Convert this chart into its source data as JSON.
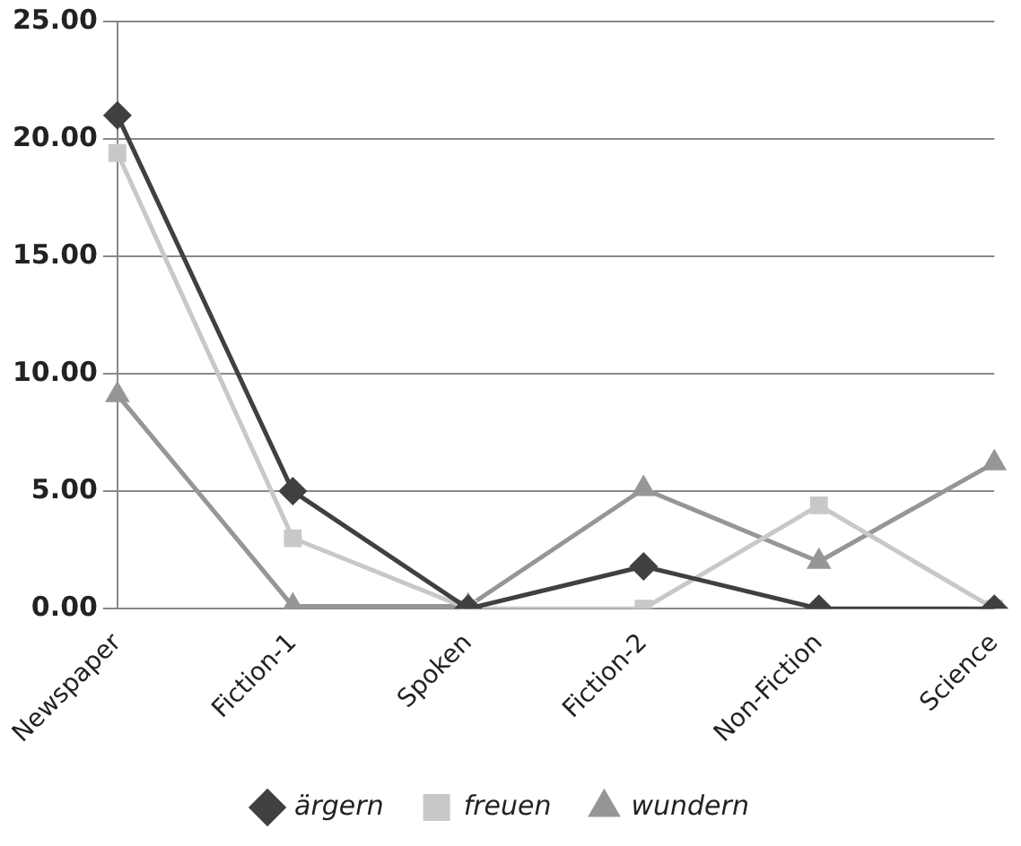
{
  "chart_data": {
    "type": "line",
    "categories": [
      "Newspaper",
      "Fiction-1",
      "Spoken",
      "Fiction-2",
      "Non-Fiction",
      "Science"
    ],
    "series": [
      {
        "name": "ärgern",
        "color": "#404040",
        "marker": "diamond",
        "values": [
          21.0,
          5.0,
          0,
          1.8,
          0,
          0
        ]
      },
      {
        "name": "freuen",
        "color": "#c8c8c8",
        "marker": "square",
        "values": [
          19.4,
          3.0,
          0,
          0,
          4.4,
          0
        ]
      },
      {
        "name": "wundern",
        "color": "#969696",
        "marker": "triangle",
        "values": [
          9.1,
          0.1,
          0.1,
          5.1,
          2.0,
          6.2
        ]
      }
    ],
    "ylim": [
      0,
      25
    ],
    "yticks": [
      {
        "value": 0,
        "label": "0.00"
      },
      {
        "value": 5,
        "label": "5.00"
      },
      {
        "value": 10,
        "label": "10.00"
      },
      {
        "value": 15,
        "label": "15.00"
      },
      {
        "value": 20,
        "label": "20.00"
      },
      {
        "value": 25,
        "label": "25.00"
      }
    ],
    "grid": "y",
    "legend": "bottom"
  }
}
